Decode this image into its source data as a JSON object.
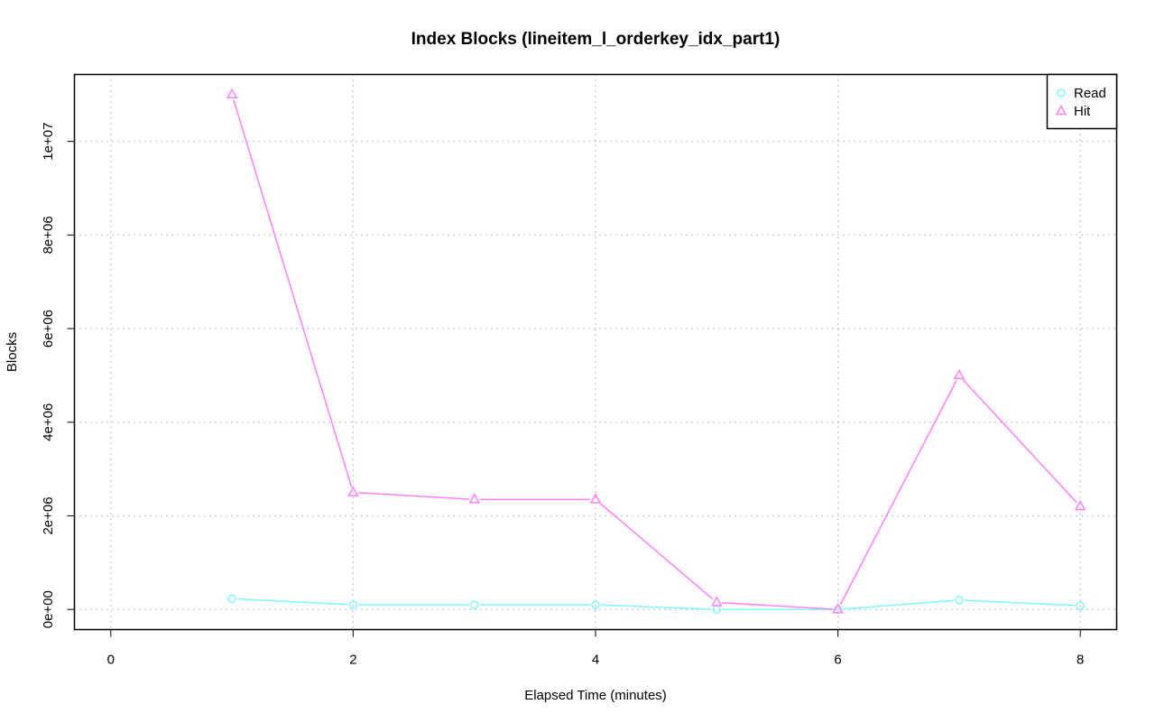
{
  "chart_data": {
    "type": "line",
    "title": "Index Blocks (lineitem_l_orderkey_idx_part1)",
    "xlabel": "Elapsed Time (minutes)",
    "ylabel": "Blocks",
    "xlim": [
      -0.3,
      8.3
    ],
    "ylim": [
      -430000,
      11430000
    ],
    "x_ticks": [
      0,
      2,
      4,
      6,
      8
    ],
    "x_tick_labels": [
      "0",
      "2",
      "4",
      "6",
      "8"
    ],
    "y_ticks": [
      0,
      2000000,
      4000000,
      6000000,
      8000000,
      10000000
    ],
    "y_tick_labels": [
      "0e+00",
      "2e+06",
      "4e+06",
      "6e+06",
      "8e+06",
      "1e+07"
    ],
    "grid": true,
    "legend_position": "top-right",
    "x": [
      1,
      2,
      3,
      4,
      5,
      6,
      7,
      8
    ],
    "series": [
      {
        "name": "Read",
        "color": "#7ff8f8",
        "marker": "circle",
        "values": [
          230000,
          100000,
          100000,
          100000,
          0,
          0,
          200000,
          80000
        ]
      },
      {
        "name": "Hit",
        "color": "#ff80ff",
        "marker": "triangle",
        "values": [
          11000000,
          2500000,
          2350000,
          2350000,
          150000,
          0,
          5000000,
          2200000
        ]
      }
    ]
  }
}
